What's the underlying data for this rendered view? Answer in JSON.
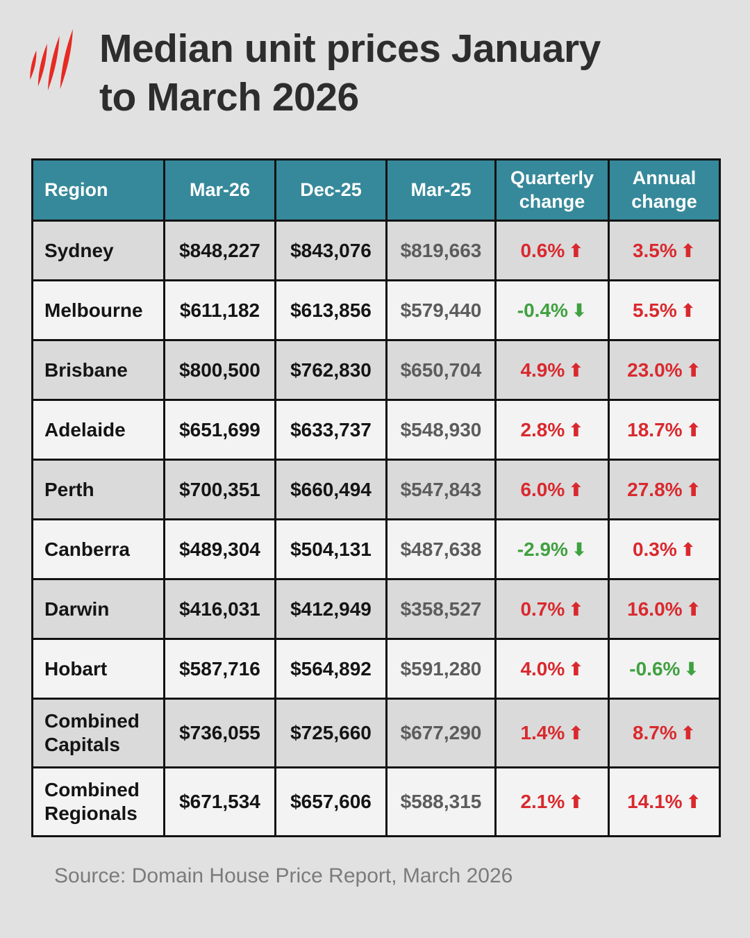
{
  "header": {
    "title_line1": "Median unit prices January",
    "title_line2": "to March 2026"
  },
  "footer": {
    "source": "Source: Domain House Price Report, March 2026"
  },
  "icons": {
    "up-arrow": "⬆",
    "down-arrow": "⬇",
    "logo": "sbs-mercator-logo"
  },
  "colors": {
    "background": "#e1e1e1",
    "header_bg": "#36899a",
    "header_text": "#ffffff",
    "row_odd": "#dadada",
    "row_even": "#f3f3f3",
    "border": "#121212",
    "up_red": "#d9292e",
    "down_green": "#3fa13f",
    "mar25_gray": "#5c5c5c",
    "logo_red": "#e62a23",
    "title_text": "#2d2d2d",
    "source_gray": "#7b7b7b"
  },
  "chart_data": {
    "type": "table",
    "title": "Median unit prices January to March 2026",
    "columns": [
      "Region",
      "Mar-26",
      "Dec-25",
      "Mar-25",
      "Quarterly change",
      "Annual change"
    ],
    "source": "Source: Domain House Price Report, March 2026",
    "rows": [
      {
        "region": "Sydney",
        "mar26": "$848,227",
        "dec25": "$843,076",
        "mar25": "$819,663",
        "quarterly_change": "0.6%",
        "quarterly_direction": "up",
        "annual_change": "3.5%",
        "annual_direction": "up"
      },
      {
        "region": "Melbourne",
        "mar26": "$611,182",
        "dec25": "$613,856",
        "mar25": "$579,440",
        "quarterly_change": "-0.4%",
        "quarterly_direction": "down",
        "annual_change": "5.5%",
        "annual_direction": "up"
      },
      {
        "region": "Brisbane",
        "mar26": "$800,500",
        "dec25": "$762,830",
        "mar25": "$650,704",
        "quarterly_change": "4.9%",
        "quarterly_direction": "up",
        "annual_change": "23.0%",
        "annual_direction": "up"
      },
      {
        "region": "Adelaide",
        "mar26": "$651,699",
        "dec25": "$633,737",
        "mar25": "$548,930",
        "quarterly_change": "2.8%",
        "quarterly_direction": "up",
        "annual_change": "18.7%",
        "annual_direction": "up"
      },
      {
        "region": "Perth",
        "mar26": "$700,351",
        "dec25": "$660,494",
        "mar25": "$547,843",
        "quarterly_change": "6.0%",
        "quarterly_direction": "up",
        "annual_change": "27.8%",
        "annual_direction": "up"
      },
      {
        "region": "Canberra",
        "mar26": "$489,304",
        "dec25": "$504,131",
        "mar25": "$487,638",
        "quarterly_change": "-2.9%",
        "quarterly_direction": "down",
        "annual_change": "0.3%",
        "annual_direction": "up"
      },
      {
        "region": "Darwin",
        "mar26": "$416,031",
        "dec25": "$412,949",
        "mar25": "$358,527",
        "quarterly_change": "0.7%",
        "quarterly_direction": "up",
        "annual_change": "16.0%",
        "annual_direction": "up"
      },
      {
        "region": "Hobart",
        "mar26": "$587,716",
        "dec25": "$564,892",
        "mar25": "$591,280",
        "quarterly_change": "4.0%",
        "quarterly_direction": "up",
        "annual_change": "-0.6%",
        "annual_direction": "down"
      },
      {
        "region": "Combined Capitals",
        "mar26": "$736,055",
        "dec25": "$725,660",
        "mar25": "$677,290",
        "quarterly_change": "1.4%",
        "quarterly_direction": "up",
        "annual_change": "8.7%",
        "annual_direction": "up"
      },
      {
        "region": "Combined Regionals",
        "mar26": "$671,534",
        "dec25": "$657,606",
        "mar25": "$588,315",
        "quarterly_change": "2.1%",
        "quarterly_direction": "up",
        "annual_change": "14.1%",
        "annual_direction": "up"
      }
    ]
  }
}
